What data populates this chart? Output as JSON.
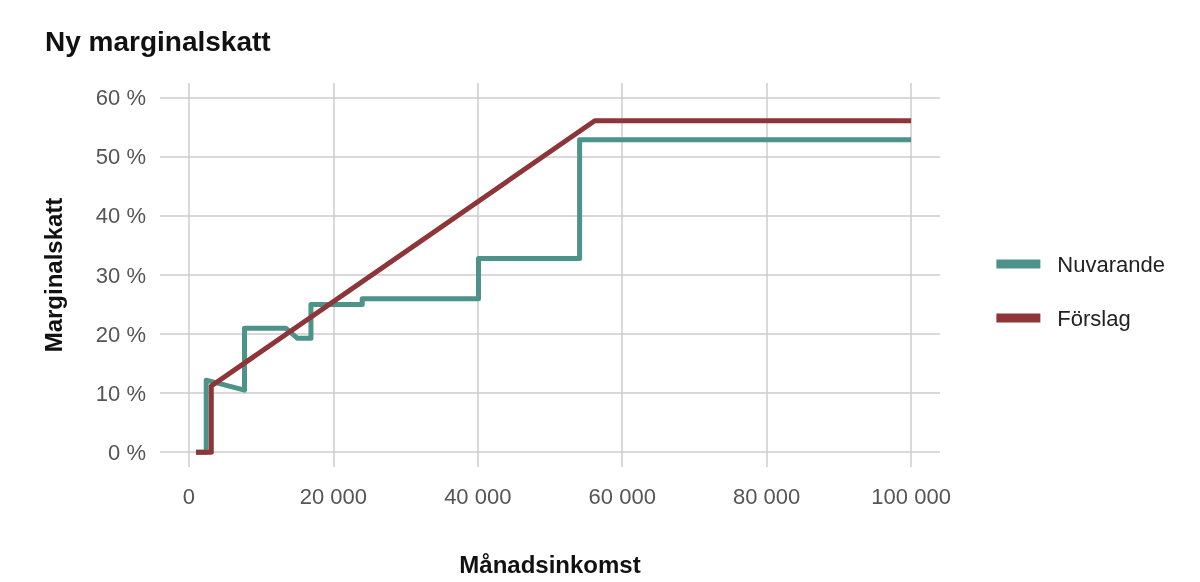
{
  "chart_data": {
    "type": "line",
    "title": "Ny marginalskatt",
    "xlabel": "Månadsinkomst",
    "ylabel": "Marginalskatt",
    "series": [
      {
        "name": "Nuvarande",
        "color": "#4e938a",
        "x": [
          1000,
          2400,
          2400,
          7700,
          7700,
          13400,
          15000,
          16900,
          16900,
          24000,
          24000,
          40100,
          40100,
          54100,
          54100,
          100000
        ],
        "values": [
          0,
          0,
          12.2,
          10.5,
          21,
          21,
          19.3,
          19.3,
          25,
          25,
          26,
          26,
          32.8,
          32.8,
          52.9,
          52.9
        ]
      },
      {
        "name": "Förslag",
        "color": "#8e353a",
        "x": [
          1000,
          3100,
          3100,
          56200,
          100000
        ],
        "values": [
          0,
          0,
          11.2,
          56.1,
          56.1
        ]
      }
    ],
    "xlim": [
      -4000,
      104000
    ],
    "xticks": [
      {
        "value": 0,
        "label": "0"
      },
      {
        "value": 20000,
        "label": "20 000"
      },
      {
        "value": 40000,
        "label": "40 000"
      },
      {
        "value": 60000,
        "label": "60 000"
      },
      {
        "value": 80000,
        "label": "80 000"
      },
      {
        "value": 100000,
        "label": "100 000"
      }
    ],
    "ylim": [
      -2.5,
      62.5
    ],
    "yticks": [
      {
        "value": 0,
        "label": "0 %"
      },
      {
        "value": 10,
        "label": "10 %"
      },
      {
        "value": 20,
        "label": "20 %"
      },
      {
        "value": 30,
        "label": "30 %"
      },
      {
        "value": 40,
        "label": "40 %"
      },
      {
        "value": 50,
        "label": "50 %"
      },
      {
        "value": 60,
        "label": "60 %"
      }
    ],
    "grid": true,
    "legend": "right",
    "marker": "none",
    "line_style": "solid"
  }
}
